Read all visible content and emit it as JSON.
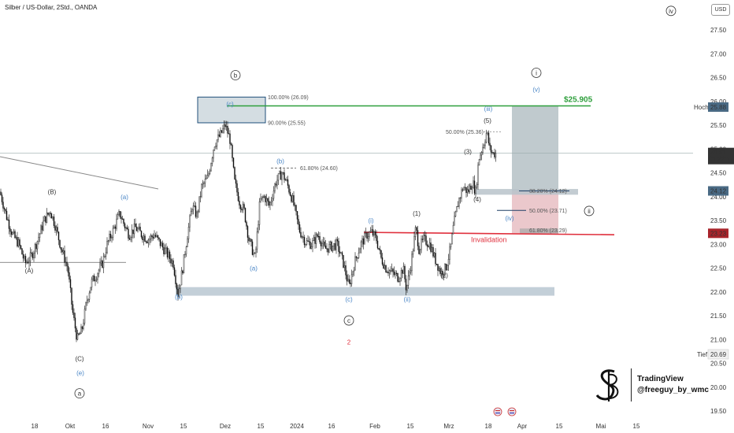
{
  "header": {
    "title": "Silber / US-Dollar, 2Std., OANDA",
    "currency": "USD"
  },
  "colors": {
    "green": "#2e9f3c",
    "red": "#e0303d",
    "blue": "#4a86c6",
    "dark_red": "#a8242b",
    "zone": "#b8c7d1"
  },
  "chart_data": {
    "type": "candlestick",
    "symbol": "Silber / US-Dollar",
    "timeframe": "2Std.",
    "source": "OANDA",
    "ylim": [
      19.5,
      28.0
    ],
    "y_ticks": [
      "27.50",
      "27.00",
      "26.50",
      "26.00",
      "25.50",
      "25.00",
      "24.50",
      "24.00",
      "23.50",
      "23.00",
      "22.50",
      "22.00",
      "21.50",
      "21.00",
      "20.50",
      "20.00",
      "19.50"
    ],
    "x_ticks": [
      "18",
      "Okt",
      "16",
      "Nov",
      "15",
      "Dez",
      "15",
      "2024",
      "16",
      "Feb",
      "15",
      "Mrz",
      "18",
      "Apr",
      "15",
      "Mai",
      "15"
    ],
    "price_path": [
      [
        0,
        24.1
      ],
      [
        8,
        23.6
      ],
      [
        16,
        23.2
      ],
      [
        24,
        23.0
      ],
      [
        32,
        22.6
      ],
      [
        40,
        22.75
      ],
      [
        48,
        23.1
      ],
      [
        56,
        23.5
      ],
      [
        64,
        23.7
      ],
      [
        70,
        23.4
      ],
      [
        78,
        22.9
      ],
      [
        86,
        22.5
      ],
      [
        92,
        21.6
      ],
      [
        98,
        21.0
      ],
      [
        104,
        21.2
      ],
      [
        110,
        21.8
      ],
      [
        116,
        22.2
      ],
      [
        122,
        22.35
      ],
      [
        130,
        22.6
      ],
      [
        136,
        23.0
      ],
      [
        144,
        23.3
      ],
      [
        152,
        23.65
      ],
      [
        158,
        23.4
      ],
      [
        164,
        23.2
      ],
      [
        172,
        23.35
      ],
      [
        180,
        23.2
      ],
      [
        188,
        23.1
      ],
      [
        196,
        23.2
      ],
      [
        204,
        23.0
      ],
      [
        212,
        22.8
      ],
      [
        220,
        22.6
      ],
      [
        226,
        21.95
      ],
      [
        232,
        22.5
      ],
      [
        238,
        23.2
      ],
      [
        244,
        23.8
      ],
      [
        250,
        23.6
      ],
      [
        256,
        24.2
      ],
      [
        264,
        24.4
      ],
      [
        272,
        25.1
      ],
      [
        280,
        25.3
      ],
      [
        286,
        25.5
      ],
      [
        292,
        25.2
      ],
      [
        298,
        24.3
      ],
      [
        304,
        23.9
      ],
      [
        310,
        23.7
      ],
      [
        316,
        23.1
      ],
      [
        320,
        22.9
      ],
      [
        324,
        22.7
      ],
      [
        330,
        23.9
      ],
      [
        336,
        24.0
      ],
      [
        342,
        23.8
      ],
      [
        350,
        24.3
      ],
      [
        358,
        24.5
      ],
      [
        364,
        24.3
      ],
      [
        372,
        23.9
      ],
      [
        380,
        23.3
      ],
      [
        388,
        23.05
      ],
      [
        396,
        23.0
      ],
      [
        404,
        23.2
      ],
      [
        412,
        22.9
      ],
      [
        420,
        22.95
      ],
      [
        428,
        23.0
      ],
      [
        436,
        22.6
      ],
      [
        443,
        22.1
      ],
      [
        450,
        22.6
      ],
      [
        458,
        23.0
      ],
      [
        466,
        23.2
      ],
      [
        472,
        23.25
      ],
      [
        478,
        23.1
      ],
      [
        484,
        22.7
      ],
      [
        490,
        22.5
      ],
      [
        498,
        22.4
      ],
      [
        506,
        22.3
      ],
      [
        512,
        22.5
      ],
      [
        516,
        22.05
      ],
      [
        522,
        22.6
      ],
      [
        528,
        23.35
      ],
      [
        532,
        22.9
      ],
      [
        538,
        23.1
      ],
      [
        546,
        23.0
      ],
      [
        552,
        22.7
      ],
      [
        560,
        22.4
      ],
      [
        566,
        22.5
      ],
      [
        572,
        22.9
      ],
      [
        576,
        23.4
      ],
      [
        582,
        23.9
      ],
      [
        588,
        24.2
      ],
      [
        594,
        24.1
      ],
      [
        600,
        24.3
      ],
      [
        604,
        24.1
      ],
      [
        608,
        24.8
      ],
      [
        614,
        25.1
      ],
      [
        618,
        25.36
      ],
      [
        622,
        25.0
      ],
      [
        626,
        24.9
      ],
      [
        630,
        24.91
      ]
    ],
    "last_price": "24.91",
    "countdown": "01:22:17",
    "high_label": "Hoch",
    "high_value": "25.88",
    "low_label": "Tief",
    "low_value": "20.69",
    "target_label": "$25.905",
    "target_value": 25.905,
    "invalidation_label": "Invalidation",
    "invalidation_value": 23.23,
    "level_24_12": "24.12",
    "level_23_23": "23.23",
    "fib_levels": [
      {
        "label": "100.00% (26.09)",
        "price": 26.09
      },
      {
        "label": "90.00% (25.55)",
        "price": 25.55
      },
      {
        "label": "61.80% (24.60)",
        "price": 24.6
      },
      {
        "label": "50.00% (25.36)",
        "price": 25.36
      },
      {
        "label": "38.20% (24.12)",
        "price": 24.12
      },
      {
        "label": "50.00% (23.71)",
        "price": 23.71
      },
      {
        "label": "61.80% (23.29)",
        "price": 23.29
      }
    ],
    "wave_labels": [
      {
        "text": "(A)",
        "x": 37,
        "price": 22.4,
        "style": "plain"
      },
      {
        "text": "(B)",
        "x": 66,
        "price": 24.05,
        "style": "plain"
      },
      {
        "text": "(C)",
        "x": 101,
        "price": 20.55,
        "style": "plain"
      },
      {
        "text": "(a)",
        "x": 158,
        "price": 23.95,
        "style": "blue"
      },
      {
        "text": "(e)",
        "x": 102,
        "price": 20.25,
        "style": "blue"
      },
      {
        "text": "a",
        "x": 101,
        "price": 19.82,
        "style": "circle"
      },
      {
        "text": "b",
        "x": 299,
        "price": 26.5,
        "style": "circle"
      },
      {
        "text": "(c)",
        "x": 292,
        "price": 25.9,
        "style": "blue"
      },
      {
        "text": "(b)",
        "x": 356,
        "price": 24.7,
        "style": "blue"
      },
      {
        "text": "(a)",
        "x": 322,
        "price": 22.45,
        "style": "blue"
      },
      {
        "text": "(b)",
        "x": 227,
        "price": 21.85,
        "style": "blue"
      },
      {
        "text": "(c)",
        "x": 443,
        "price": 21.8,
        "style": "blue"
      },
      {
        "text": "c",
        "x": 443,
        "price": 21.35,
        "style": "circle"
      },
      {
        "text": "2",
        "x": 443,
        "price": 20.9,
        "style": "red"
      },
      {
        "text": "(i)",
        "x": 471,
        "price": 23.45,
        "style": "blue"
      },
      {
        "text": "(ii)",
        "x": 517,
        "price": 21.8,
        "style": "blue"
      },
      {
        "text": "(1)",
        "x": 529,
        "price": 23.6,
        "style": "plain"
      },
      {
        "text": "(2)",
        "x": 564,
        "price": 22.3,
        "style": "plain"
      },
      {
        "text": "(3)",
        "x": 594,
        "price": 24.9,
        "style": "plain"
      },
      {
        "text": "(4)",
        "x": 606,
        "price": 23.9,
        "style": "plain"
      },
      {
        "text": "(5)",
        "x": 619,
        "price": 25.55,
        "style": "plain"
      },
      {
        "text": "(iii)",
        "x": 620,
        "price": 25.8,
        "style": "blue"
      },
      {
        "text": "(iv)",
        "x": 647,
        "price": 23.5,
        "style": "blue"
      },
      {
        "text": "(v)",
        "x": 681,
        "price": 26.2,
        "style": "blue"
      },
      {
        "text": "i",
        "x": 681,
        "price": 26.55,
        "style": "circle"
      },
      {
        "text": "ii",
        "x": 748,
        "price": 23.65,
        "style": "circle"
      },
      {
        "text": "iv",
        "x": 852,
        "price": 27.85,
        "style": "circle"
      }
    ]
  },
  "watermark": {
    "brand": "TradingView",
    "handle": "@freeguy_by_wmc"
  }
}
